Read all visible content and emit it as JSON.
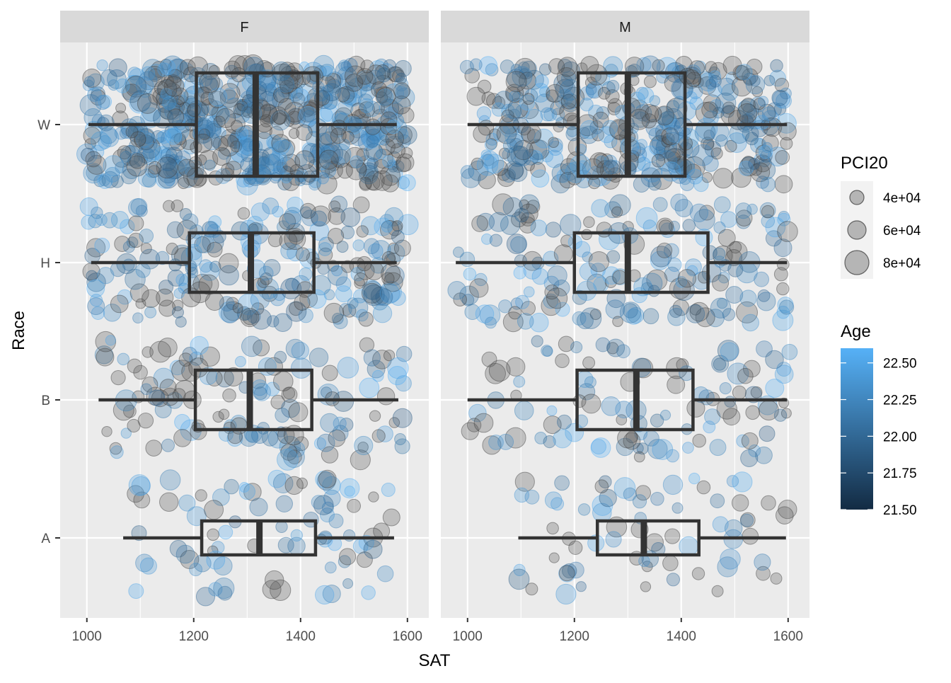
{
  "chart_data": {
    "type": "scatter",
    "subtype": "faceted jittered scatter with boxplot overlay",
    "title": "",
    "xlabel": "SAT",
    "ylabel": "Race",
    "facets": [
      "F",
      "M"
    ],
    "categories": [
      "A",
      "B",
      "H",
      "W"
    ],
    "x_ticks": [
      1000,
      1200,
      1400,
      1600
    ],
    "xlim": [
      950,
      1640
    ],
    "grid": true,
    "legend_position": "right",
    "boxplots": [
      {
        "facet": "F",
        "race": "W",
        "min": 1003,
        "q1": 1205,
        "median": 1316,
        "q3": 1432,
        "max": 1580
      },
      {
        "facet": "F",
        "race": "H",
        "min": 1008,
        "q1": 1192,
        "median": 1307,
        "q3": 1425,
        "max": 1580
      },
      {
        "facet": "F",
        "race": "B",
        "min": 1022,
        "q1": 1203,
        "median": 1305,
        "q3": 1421,
        "max": 1583
      },
      {
        "facet": "F",
        "race": "A",
        "min": 1068,
        "q1": 1215,
        "median": 1323,
        "q3": 1428,
        "max": 1575
      },
      {
        "facet": "M",
        "race": "W",
        "min": 1000,
        "q1": 1207,
        "median": 1300,
        "q3": 1407,
        "max": 1598
      },
      {
        "facet": "M",
        "race": "H",
        "min": 978,
        "q1": 1200,
        "median": 1300,
        "q3": 1450,
        "max": 1598
      },
      {
        "facet": "M",
        "race": "B",
        "min": 1000,
        "q1": 1205,
        "median": 1316,
        "q3": 1422,
        "max": 1598
      },
      {
        "facet": "M",
        "race": "A",
        "min": 1095,
        "q1": 1243,
        "median": 1330,
        "q3": 1433,
        "max": 1596
      }
    ],
    "point_groups": [
      {
        "facet": "F",
        "race": "W",
        "n": 620,
        "sat_range": [
          1000,
          1600
        ]
      },
      {
        "facet": "F",
        "race": "H",
        "n": 240,
        "sat_range": [
          1005,
          1600
        ]
      },
      {
        "facet": "F",
        "race": "B",
        "n": 140,
        "sat_range": [
          1020,
          1595
        ]
      },
      {
        "facet": "F",
        "race": "A",
        "n": 85,
        "sat_range": [
          1065,
          1575
        ]
      },
      {
        "facet": "M",
        "race": "W",
        "n": 430,
        "sat_range": [
          1000,
          1600
        ]
      },
      {
        "facet": "M",
        "race": "H",
        "n": 190,
        "sat_range": [
          975,
          1600
        ]
      },
      {
        "facet": "M",
        "race": "B",
        "n": 110,
        "sat_range": [
          995,
          1600
        ]
      },
      {
        "facet": "M",
        "race": "A",
        "n": 70,
        "sat_range": [
          1095,
          1600
        ]
      }
    ],
    "size_legend": {
      "title": "PCI20",
      "breaks": [
        40000,
        60000,
        80000
      ],
      "labels": [
        "4e+04",
        "6e+04",
        "8e+04"
      ]
    },
    "color_legend": {
      "title": "Age",
      "min": 21.5,
      "max": 22.6,
      "breaks": [
        22.5,
        22.25,
        22.0,
        21.75,
        21.5
      ],
      "labels": [
        "22.50",
        "22.25",
        "22.00",
        "21.75",
        "21.50"
      ],
      "low_color": "#132B43",
      "high_color": "#56B1F7"
    }
  }
}
